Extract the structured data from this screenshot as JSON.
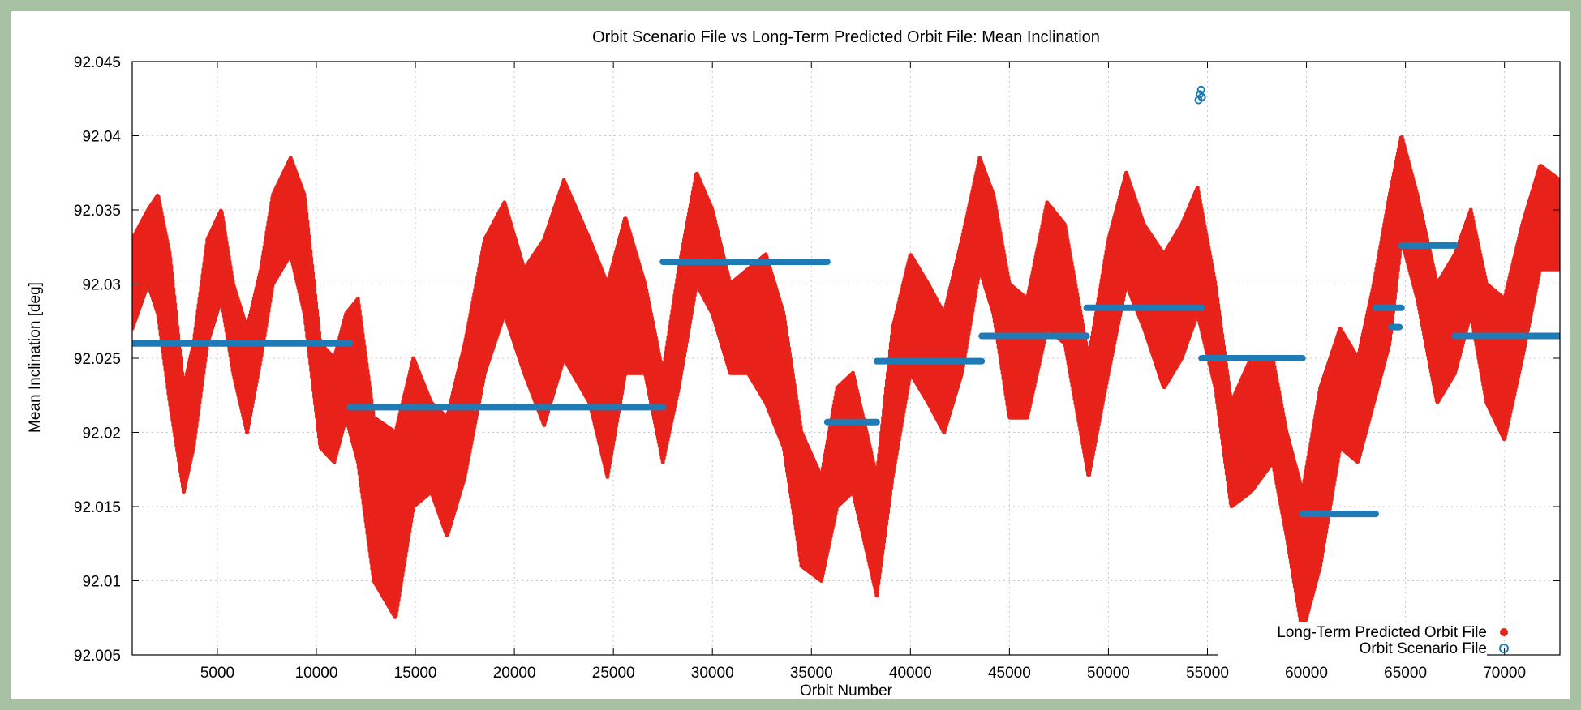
{
  "chart_data": {
    "type": "scatter",
    "title": "Orbit Scenario File vs Long-Term Predicted Orbit File: Mean Inclination",
    "xlabel": "Orbit Number",
    "ylabel": "Mean Inclination [deg]",
    "xlim": [
      700,
      72800
    ],
    "ylim": [
      92.005,
      92.045
    ],
    "x_ticks": [
      "5000",
      "10000",
      "15000",
      "20000",
      "25000",
      "30000",
      "35000",
      "40000",
      "45000",
      "50000",
      "55000",
      "60000",
      "65000",
      "70000"
    ],
    "y_ticks": [
      "92.005",
      "92.01",
      "92.015",
      "92.02",
      "92.025",
      "92.03",
      "92.035",
      "92.04",
      "92.045"
    ],
    "grid": true,
    "legend_position": "bottom-right",
    "colors": {
      "predicted": "#e8231a",
      "scenario": "#1f7bb6"
    },
    "series": [
      {
        "name": "Long-Term Predicted Orbit File",
        "marker": "filled-circle",
        "envelope": {
          "x": [
            700,
            1500,
            2000,
            2600,
            3300,
            3800,
            4500,
            5200,
            5800,
            6500,
            7200,
            7800,
            8700,
            9400,
            10200,
            10900,
            11500,
            12100,
            12900,
            14000,
            14900,
            15800,
            16600,
            17500,
            18500,
            19500,
            20500,
            21500,
            22500,
            23800,
            24700,
            25600,
            26600,
            27500,
            28300,
            29200,
            30000,
            30900,
            31800,
            32700,
            33600,
            34500,
            35500,
            36300,
            37100,
            38300,
            39100,
            40000,
            40900,
            41700,
            42600,
            43500,
            44200,
            45000,
            45900,
            46900,
            47800,
            49000,
            50000,
            50900,
            51800,
            52800,
            53700,
            54500,
            55400,
            56200,
            57200,
            58300,
            59000,
            59800,
            60700,
            61700,
            62600,
            63400,
            64200,
            64800,
            65600,
            66600,
            67500,
            68300,
            69100,
            70000,
            70900,
            71800,
            72800
          ],
          "upper": [
            92.033,
            92.035,
            92.036,
            92.032,
            92.023,
            92.026,
            92.033,
            92.035,
            92.03,
            92.027,
            92.031,
            92.036,
            92.0385,
            92.036,
            92.026,
            92.025,
            92.028,
            92.029,
            92.021,
            92.02,
            92.025,
            92.022,
            92.021,
            92.026,
            92.033,
            92.0355,
            92.031,
            92.033,
            92.037,
            92.033,
            92.03,
            92.0345,
            92.03,
            92.024,
            92.031,
            92.0375,
            92.035,
            92.03,
            92.031,
            92.032,
            92.028,
            92.02,
            92.017,
            92.023,
            92.024,
            92.017,
            92.027,
            92.032,
            92.03,
            92.028,
            92.033,
            92.0385,
            92.036,
            92.03,
            92.029,
            92.0355,
            92.034,
            92.025,
            92.033,
            92.0375,
            92.034,
            92.032,
            92.034,
            92.0365,
            92.03,
            92.022,
            92.025,
            92.025,
            92.02,
            92.016,
            92.023,
            92.027,
            92.025,
            92.03,
            92.036,
            92.04,
            92.036,
            92.03,
            92.032,
            92.035,
            92.03,
            92.029,
            92.034,
            92.038,
            92.037
          ],
          "lower": [
            92.027,
            92.03,
            92.028,
            92.022,
            92.016,
            92.019,
            92.026,
            92.029,
            92.024,
            92.02,
            92.025,
            92.03,
            92.032,
            92.028,
            92.019,
            92.018,
            92.021,
            92.018,
            92.01,
            92.0075,
            92.015,
            92.016,
            92.013,
            92.017,
            92.024,
            92.028,
            92.024,
            92.0205,
            92.025,
            92.022,
            92.017,
            92.024,
            92.024,
            92.018,
            92.023,
            92.03,
            92.028,
            92.024,
            92.024,
            92.022,
            92.019,
            92.011,
            92.01,
            92.015,
            92.016,
            92.009,
            92.017,
            92.024,
            92.022,
            92.02,
            92.024,
            92.031,
            92.028,
            92.021,
            92.021,
            92.027,
            92.026,
            92.017,
            92.024,
            92.03,
            92.027,
            92.023,
            92.025,
            92.028,
            92.023,
            92.015,
            92.016,
            92.018,
            92.013,
            92.0065,
            92.011,
            92.019,
            92.018,
            92.022,
            92.026,
            92.033,
            92.029,
            92.022,
            92.024,
            92.028,
            92.022,
            92.0195,
            92.025,
            92.031,
            92.031
          ]
        }
      },
      {
        "name": "Orbit Scenario File",
        "marker": "open-circle",
        "segments": [
          {
            "x": [
              700,
              11700
            ],
            "y": 92.026
          },
          {
            "x": [
              11700,
              27500
            ],
            "y": 92.0217
          },
          {
            "x": [
              27500,
              35800
            ],
            "y": 92.0315
          },
          {
            "x": [
              35800,
              38300
            ],
            "y": 92.0207
          },
          {
            "x": [
              38300,
              43600
            ],
            "y": 92.0248
          },
          {
            "x": [
              43600,
              48900
            ],
            "y": 92.0265
          },
          {
            "x": [
              48900,
              54700
            ],
            "y": 92.0284
          },
          {
            "x": [
              54700,
              59800
            ],
            "y": 92.025
          },
          {
            "x": [
              59800,
              63500
            ],
            "y": 92.0145
          },
          {
            "x": [
              63500,
              64800
            ],
            "y": 92.0284
          },
          {
            "x": [
              64300,
              64700
            ],
            "y": 92.0271
          },
          {
            "x": [
              64800,
              67500
            ],
            "y": 92.0326
          },
          {
            "x": [
              67500,
              72800
            ],
            "y": 92.0265
          }
        ],
        "outliers": [
          {
            "x": 54550,
            "y": 92.0424
          },
          {
            "x": 54620,
            "y": 92.0428
          },
          {
            "x": 54680,
            "y": 92.0431
          },
          {
            "x": 54720,
            "y": 92.0426
          }
        ]
      }
    ]
  }
}
